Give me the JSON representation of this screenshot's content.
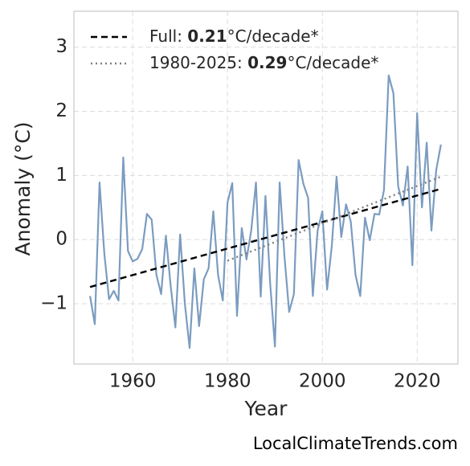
{
  "chart_data": {
    "type": "line",
    "x": [
      1951,
      1952,
      1953,
      1954,
      1955,
      1956,
      1957,
      1958,
      1959,
      1960,
      1961,
      1962,
      1963,
      1964,
      1965,
      1966,
      1967,
      1968,
      1969,
      1970,
      1971,
      1972,
      1973,
      1974,
      1975,
      1976,
      1977,
      1978,
      1979,
      1980,
      1981,
      1982,
      1983,
      1984,
      1985,
      1986,
      1987,
      1988,
      1989,
      1990,
      1991,
      1992,
      1993,
      1994,
      1995,
      1996,
      1997,
      1998,
      1999,
      2000,
      2001,
      2002,
      2003,
      2004,
      2005,
      2006,
      2007,
      2008,
      2009,
      2010,
      2011,
      2012,
      2013,
      2014,
      2015,
      2016,
      2017,
      2018,
      2019,
      2020,
      2021,
      2022,
      2023,
      2024,
      2025
    ],
    "series": [
      {
        "color": "#7b9cc0",
        "values": [
          -0.88,
          -1.32,
          0.89,
          -0.21,
          -0.93,
          -0.8,
          -0.95,
          1.28,
          -0.18,
          -0.34,
          -0.3,
          -0.15,
          0.4,
          0.31,
          -0.55,
          -0.85,
          0.06,
          -0.72,
          -1.37,
          0.08,
          -1.0,
          -1.69,
          -0.45,
          -1.35,
          -0.62,
          -0.45,
          0.44,
          -0.55,
          -0.95,
          0.58,
          0.88,
          -1.19,
          0.18,
          -0.31,
          0.14,
          0.89,
          -0.89,
          0.68,
          -0.69,
          -1.67,
          0.89,
          -0.25,
          -1.13,
          -0.85,
          1.24,
          0.87,
          0.65,
          -0.88,
          0.14,
          0.44,
          -0.78,
          -0.1,
          0.98,
          0.04,
          0.55,
          0.28,
          -0.55,
          -0.88,
          0.34,
          -0.01,
          0.4,
          0.39,
          0.77,
          2.56,
          2.28,
          0.83,
          0.53,
          1.14,
          -0.4,
          1.97,
          0.5,
          1.51,
          0.14,
          1.08,
          1.48
        ]
      },
      {
        "name": [
          "Full: ",
          "0.21",
          "°C/decade*"
        ],
        "color": "#000000",
        "style": "dashed",
        "x": [
          1951,
          2025
        ],
        "values": [
          -0.74,
          0.79
        ]
      },
      {
        "name": [
          "1980-2025: ",
          "0.29",
          "°C/decade*"
        ],
        "color": "#808080",
        "style": "dotted",
        "x": [
          1980,
          2025
        ],
        "values": [
          -0.33,
          0.98
        ]
      }
    ],
    "xlabel": "Year",
    "ylabel": "Anomaly (°C)",
    "xlim": [
      1947.6,
      2028.6
    ],
    "ylim": [
      -1.94,
      3.56
    ],
    "xticks": [
      1960,
      1980,
      2000,
      2020
    ],
    "yticks": [
      {
        "value": -1,
        "label": "−1"
      },
      0,
      1,
      2,
      3
    ],
    "grid": true,
    "legend": "upper left",
    "source": "LocalClimateTrends.com"
  }
}
